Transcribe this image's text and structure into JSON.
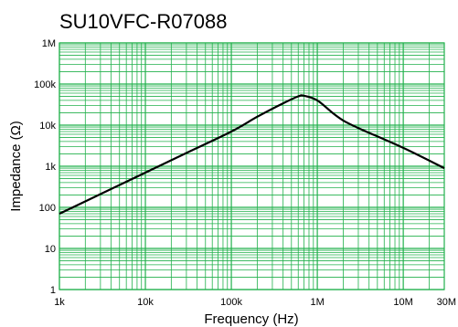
{
  "chart_data": {
    "type": "line",
    "title": "SU10VFC-R07088",
    "xlabel": "Frequency (Hz)",
    "ylabel": "Impedance (Ω)",
    "x_scale": "log",
    "y_scale": "log",
    "xlim": [
      1000,
      30000000
    ],
    "ylim": [
      1,
      1000000
    ],
    "grid": true,
    "grid_color": "#22b14c",
    "line_color": "#000000",
    "x_ticks": [
      {
        "value": 1000,
        "label": "1k"
      },
      {
        "value": 10000,
        "label": "10k"
      },
      {
        "value": 100000,
        "label": "100k"
      },
      {
        "value": 1000000,
        "label": "1M"
      },
      {
        "value": 10000000,
        "label": "10M"
      },
      {
        "value": 30000000,
        "label": "30M"
      }
    ],
    "y_ticks": [
      {
        "value": 1,
        "label": "1"
      },
      {
        "value": 10,
        "label": "10"
      },
      {
        "value": 100,
        "label": "100"
      },
      {
        "value": 1000,
        "label": "1k"
      },
      {
        "value": 10000,
        "label": "10k"
      },
      {
        "value": 100000,
        "label": "100k"
      },
      {
        "value": 1000000,
        "label": "1M"
      }
    ],
    "series": [
      {
        "x": [
          1000,
          3000,
          10000,
          30000,
          100000,
          200000,
          400000,
          600000,
          700000,
          1000000,
          1500000,
          2000000,
          3000000,
          10000000,
          30000000
        ],
        "y": [
          70,
          210,
          700,
          2100,
          7000,
          16000,
          34000,
          50000,
          52000,
          40000,
          20000,
          13000,
          8500,
          2800,
          900
        ]
      }
    ]
  }
}
